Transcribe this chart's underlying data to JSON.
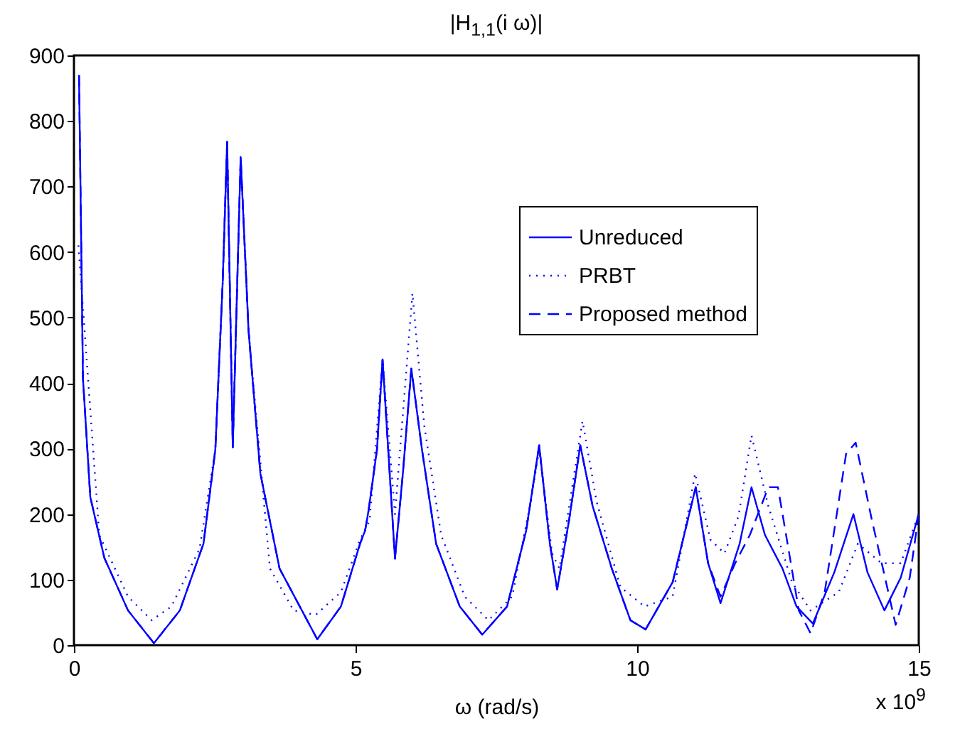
{
  "chart_data": {
    "type": "line",
    "title": "|H$_{1,1}$(i ω)|",
    "xlabel": "ω (rad/s)",
    "annotations": [
      "x 10$^{9}$"
    ],
    "xlim": [
      0,
      15
    ],
    "xticks": [
      0,
      5,
      10,
      15
    ],
    "ylim": [
      0,
      900
    ],
    "yticks": [
      0,
      100,
      200,
      300,
      400,
      500,
      600,
      700,
      800,
      900
    ],
    "grid": false,
    "legend": "top right",
    "marker": "none",
    "series": [
      {
        "name": "Unreduced",
        "color": "#0000ff",
        "line_style": "solid",
        "x": [
          0.09,
          0.16,
          0.29,
          0.54,
          0.96,
          1.42,
          1.88,
          2.3,
          2.51,
          2.64,
          2.72,
          2.82,
          2.96,
          3.1,
          3.31,
          3.65,
          4.32,
          4.74,
          5.08,
          5.17,
          5.23,
          5.38,
          5.48,
          5.58,
          5.7,
          5.84,
          5.99,
          6.18,
          6.43,
          6.85,
          7.25,
          7.69,
          8.03,
          8.26,
          8.45,
          8.58,
          8.79,
          8.99,
          9.21,
          9.55,
          9.88,
          10.15,
          10.63,
          11.04,
          11.26,
          11.48,
          11.82,
          12.03,
          12.27,
          12.58,
          12.83,
          13.12,
          13.5,
          13.84,
          14.09,
          14.39,
          14.68,
          15
        ],
        "values": [
          870,
          407,
          226,
          133,
          53,
          3,
          53,
          155,
          298,
          552,
          768,
          302,
          745,
          480,
          262,
          117,
          9,
          59,
          155,
          175,
          205,
          298,
          436,
          298,
          132,
          262,
          422,
          298,
          155,
          59,
          16,
          59,
          175,
          305,
          155,
          85,
          190,
          305,
          212,
          117,
          38,
          24,
          96,
          241,
          125,
          64,
          155,
          241,
          168,
          117,
          59,
          33,
          111,
          200,
          111,
          53,
          103,
          200
        ]
      },
      {
        "name": "PRBT",
        "color": "#0000ff",
        "line_style": "dotted",
        "x": [
          0.08,
          0.45,
          0.96,
          1.38,
          1.73,
          2.23,
          2.51,
          2.64,
          2.72,
          2.82,
          2.96,
          3.1,
          3.48,
          3.9,
          4.29,
          4.74,
          5.08,
          5.25,
          5.48,
          5.7,
          6.01,
          6.22,
          6.52,
          6.94,
          7.36,
          7.78,
          8.11,
          8.26,
          8.49,
          8.62,
          9.03,
          9.28,
          9.7,
          10.13,
          10.63,
          11.03,
          11.3,
          11.55,
          11.8,
          12.03,
          12.33,
          12.75,
          13.08,
          13.58,
          13.92,
          14.34,
          14.68,
          15
        ],
        "values": [
          610,
          168,
          74,
          38,
          59,
          147,
          298,
          552,
          768,
          302,
          745,
          480,
          117,
          53,
          46,
          81,
          161,
          190,
          436,
          200,
          537,
          335,
          168,
          74,
          38,
          74,
          219,
          298,
          140,
          117,
          342,
          219,
          89,
          59,
          74,
          262,
          161,
          140,
          197,
          320,
          212,
          96,
          53,
          81,
          155,
          125,
          125,
          200
        ]
      },
      {
        "name": "Proposed method",
        "color": "#0000ff",
        "line_style": "dashed",
        "x": [
          0.09,
          0.16,
          0.29,
          0.54,
          0.96,
          1.42,
          1.88,
          2.3,
          2.51,
          2.64,
          2.72,
          2.82,
          2.96,
          3.1,
          3.31,
          3.65,
          4.32,
          4.74,
          5.08,
          5.17,
          5.23,
          5.38,
          5.48,
          5.58,
          5.7,
          5.84,
          5.99,
          6.18,
          6.43,
          6.85,
          7.25,
          7.69,
          8.03,
          8.26,
          8.45,
          8.58,
          8.79,
          8.99,
          9.21,
          9.55,
          9.88,
          10.15,
          10.63,
          11.04,
          11.26,
          11.48,
          11.74,
          12.0,
          12.33,
          12.5,
          12.7,
          12.87,
          13.08,
          13.33,
          13.71,
          13.88,
          14.17,
          14.38,
          14.59,
          14.84,
          15
        ],
        "values": [
          870,
          407,
          226,
          133,
          53,
          3,
          53,
          155,
          298,
          552,
          768,
          302,
          745,
          480,
          262,
          117,
          9,
          59,
          155,
          175,
          205,
          298,
          436,
          298,
          132,
          262,
          422,
          298,
          155,
          59,
          16,
          59,
          175,
          305,
          155,
          85,
          190,
          305,
          212,
          117,
          38,
          24,
          96,
          241,
          125,
          74,
          125,
          168,
          241,
          241,
          140,
          53,
          18,
          81,
          292,
          309,
          190,
          111,
          31,
          103,
          200
        ]
      }
    ]
  }
}
